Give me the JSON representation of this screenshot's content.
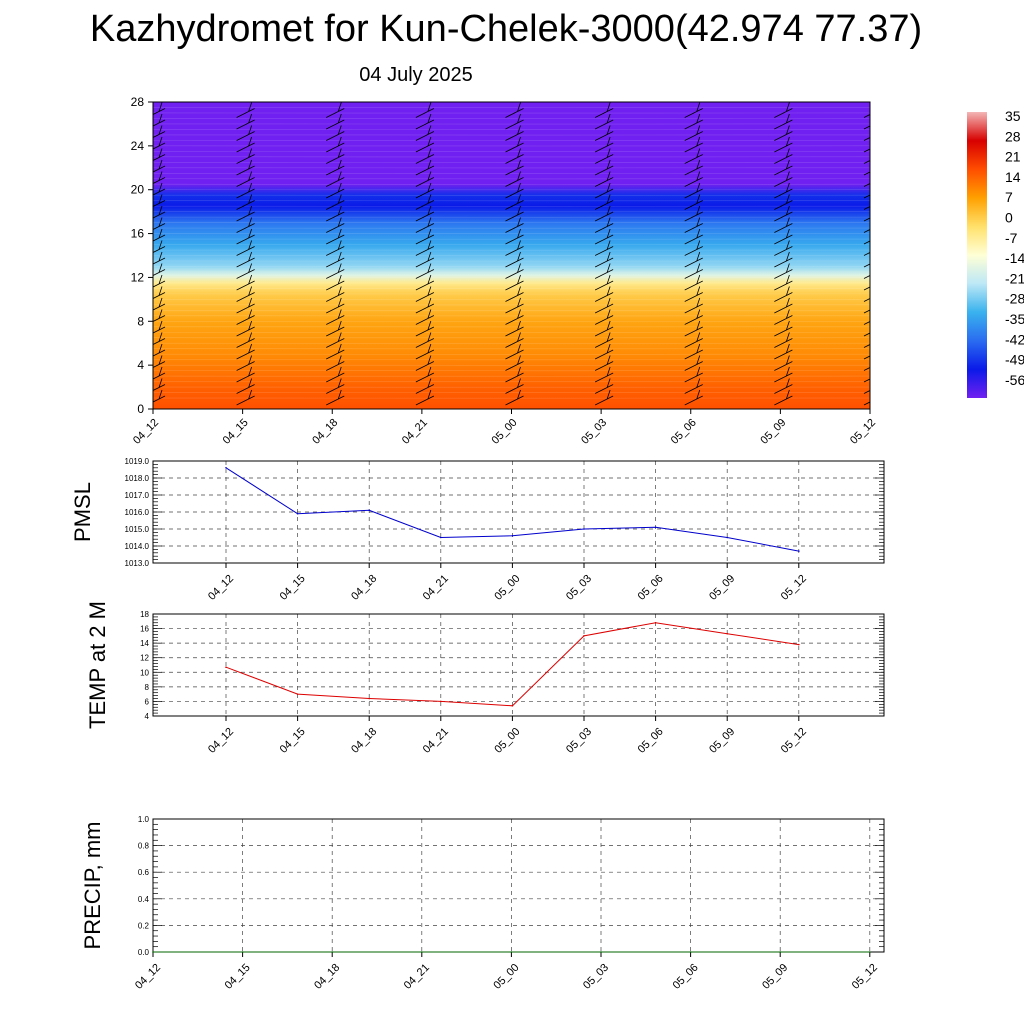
{
  "title": "Kazhydromet for Kun-Chelek-3000(42.974 77.37)",
  "subtitle": "04 July 2025",
  "colorbar": {
    "labels": [
      "35",
      "28",
      "21",
      "14",
      "7",
      "0",
      "-7",
      "-14",
      "-21",
      "-28",
      "-35",
      "-42",
      "-49",
      "-56"
    ],
    "colors": [
      "#f4b6b6",
      "#d70000",
      "#ff4d00",
      "#ffa000",
      "#ffe06a",
      "#ffffd6",
      "#bde8f6",
      "#39b2ee",
      "#2a6cf0",
      "#0a1ae8",
      "#7020f0"
    ]
  },
  "chart_data": [
    {
      "type": "heatmap",
      "name": "temperature cross-section",
      "title": "",
      "xlabel": "",
      "ylabel": "",
      "x_ticks": [
        "04_12",
        "04_15",
        "04_18",
        "04_21",
        "05_00",
        "05_03",
        "05_06",
        "05_09",
        "05_12"
      ],
      "y_ticks": [
        "0",
        "4",
        "8",
        "12",
        "16",
        "20",
        "24",
        "28"
      ],
      "ylim": [
        0,
        28
      ],
      "z_range": [
        -56,
        35
      ],
      "profile": [
        {
          "level": 0,
          "value": 16
        },
        {
          "level": 2,
          "value": 14
        },
        {
          "level": 5,
          "value": 8
        },
        {
          "level": 8,
          "value": 3
        },
        {
          "level": 10.5,
          "value": -3
        },
        {
          "level": 11.5,
          "value": -8
        },
        {
          "level": 12.2,
          "value": -15
        },
        {
          "level": 13,
          "value": -22
        },
        {
          "level": 15,
          "value": -32
        },
        {
          "level": 17,
          "value": -42
        },
        {
          "level": 18.5,
          "value": -52
        },
        {
          "level": 19.5,
          "value": -50
        },
        {
          "level": 20.5,
          "value": -58
        },
        {
          "level": 28,
          "value": -58
        }
      ],
      "wind_barbs": true
    },
    {
      "type": "line",
      "ylabel": "PMSL",
      "x": [
        "04_12",
        "04_15",
        "04_18",
        "04_21",
        "05_00",
        "05_03",
        "05_06",
        "05_09",
        "05_12"
      ],
      "y_ticks": [
        "1013.0",
        "1014.0",
        "1015.0",
        "1016.0",
        "1017.0",
        "1018.0",
        "1019.0"
      ],
      "ylim": [
        1013,
        1019
      ],
      "values": [
        1018.6,
        1015.9,
        1016.1,
        1014.5,
        1014.6,
        1015.0,
        1015.1,
        1014.5,
        1013.7
      ],
      "color": "#0000cc",
      "grid": true
    },
    {
      "type": "line",
      "ylabel": "TEMP at 2 M",
      "x": [
        "04_12",
        "04_15",
        "04_18",
        "04_21",
        "05_00",
        "05_03",
        "05_06",
        "05_09",
        "05_12"
      ],
      "y_ticks": [
        "4",
        "6",
        "8",
        "10",
        "12",
        "14",
        "16",
        "18"
      ],
      "ylim": [
        4,
        18
      ],
      "values": [
        10.7,
        7.0,
        6.4,
        6.0,
        5.4,
        15.0,
        16.8,
        15.3,
        13.8
      ],
      "color": "#dd0000",
      "grid": true
    },
    {
      "type": "line",
      "ylabel": "PRECIP, mm",
      "x": [
        "04_12",
        "04_15",
        "04_18",
        "04_21",
        "05_00",
        "05_03",
        "05_06",
        "05_09",
        "05_12"
      ],
      "y_ticks": [
        "0.0",
        "0.2",
        "0.4",
        "0.6",
        "0.8",
        "1.0"
      ],
      "ylim": [
        0,
        1
      ],
      "values": [
        0,
        0,
        0,
        0,
        0,
        0,
        0,
        0,
        0
      ],
      "color": "#006400",
      "grid": true
    }
  ]
}
